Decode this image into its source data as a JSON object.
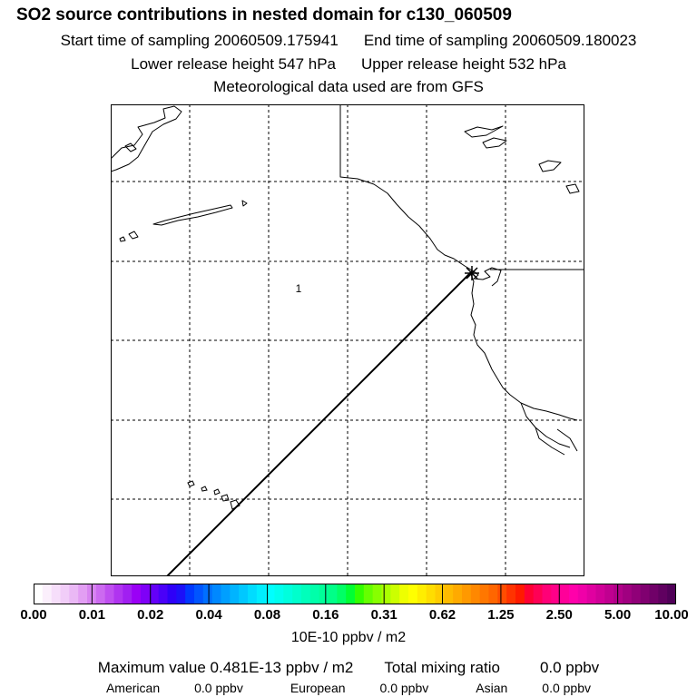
{
  "header": {
    "title": "SO2 source contributions in nested domain for c130_060509",
    "start_label": "Start time of sampling 20060509.175941",
    "end_label": "End time of sampling 20060509.180023",
    "lower_label": "Lower release height  547 hPa",
    "upper_label": "Upper release height  532 hPa",
    "met_label": "Meteorological data used are from GFS"
  },
  "map": {
    "region_label": "1",
    "features": [
      "coastline",
      "lat-lon-gridlines",
      "trajectory-line",
      "release-point"
    ]
  },
  "colorbar": {
    "ticks": [
      "0.00",
      "0.01",
      "0.02",
      "0.04",
      "0.08",
      "0.16",
      "0.31",
      "0.62",
      "1.25",
      "2.50",
      "5.00",
      "10.00"
    ],
    "colors": [
      "#ffffff",
      "#fbeffc",
      "#f6defa",
      "#f1cdf8",
      "#eab8f5",
      "#e29ef3",
      "#d884f1",
      "#cc6af0",
      "#bf4ff0",
      "#b034f0",
      "#a11ff1",
      "#9a00f6",
      "#7f00f7",
      "#6400f8",
      "#4a00f8",
      "#2e00f8",
      "#1c10f8",
      "#0038ff",
      "#0055ff",
      "#006fff",
      "#0088ff",
      "#009fff",
      "#00b4ff",
      "#00c8ff",
      "#00dcff",
      "#00eeff",
      "#00ffff",
      "#00ffee",
      "#00ffdd",
      "#00ffcc",
      "#00ffbb",
      "#00ffaa",
      "#00ff99",
      "#00ff88",
      "#00ff66",
      "#00ff33",
      "#33ff00",
      "#66ff00",
      "#88ff00",
      "#aaff00",
      "#ccff00",
      "#eeff00",
      "#ffff00",
      "#ffee00",
      "#ffdd00",
      "#ffcc00",
      "#ffbb00",
      "#ffaa00",
      "#ff9900",
      "#ff8800",
      "#ff7700",
      "#ff6600",
      "#ff4d00",
      "#ff3300",
      "#ff1a00",
      "#ff0033",
      "#ff0055",
      "#ff0077",
      "#ff0088",
      "#ff0099",
      "#ff00aa",
      "#f000a8",
      "#e000a0",
      "#d00098",
      "#c00090",
      "#b00088",
      "#a00080",
      "#900078",
      "#800070",
      "#700068",
      "#600060",
      "#500058"
    ],
    "units_label": "10E-10 ppbv / m2"
  },
  "footer": {
    "max_label": "Maximum value  0.481E-13 ppbv / m2",
    "total_label": "Total mixing ratio",
    "total_value": "0.0 ppbv",
    "american_label": "American",
    "american_value": "0.0 ppbv",
    "european_label": "European",
    "european_value": "0.0 ppbv",
    "asian_label": "Asian",
    "asian_value": "0.0 ppbv"
  }
}
